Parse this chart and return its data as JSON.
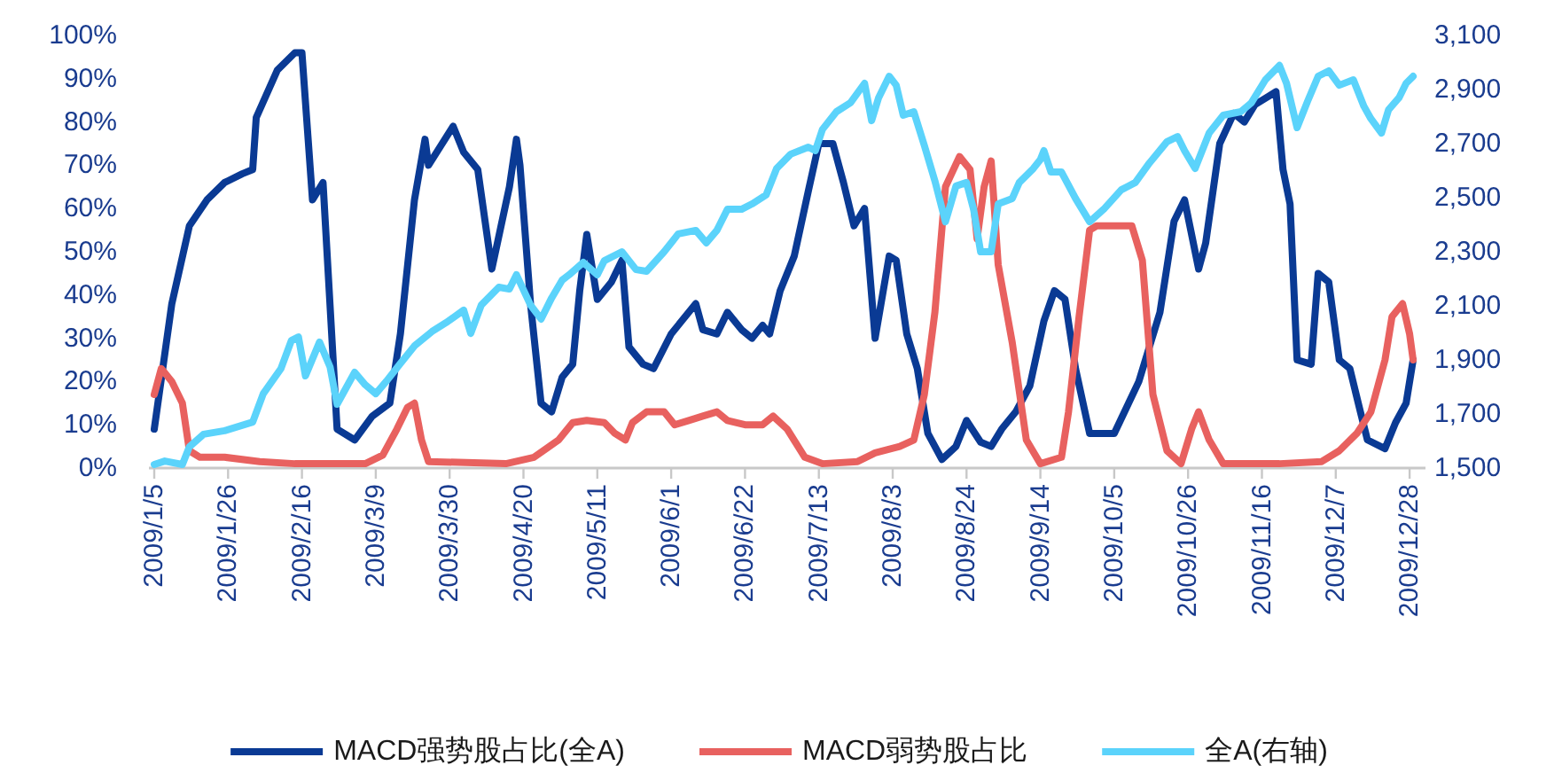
{
  "chart_data": {
    "type": "line",
    "legend": "bottom",
    "grid": false,
    "marker": "none",
    "line_style": "solid",
    "xlim": [
      "2009-01-05",
      "2009-12-31"
    ],
    "xticks": [
      {
        "value": "2009-01-05",
        "label": "2009/1/5"
      },
      {
        "value": "2009-01-26",
        "label": "2009/1/26"
      },
      {
        "value": "2009-02-16",
        "label": "2009/2/16"
      },
      {
        "value": "2009-03-09",
        "label": "2009/3/9"
      },
      {
        "value": "2009-03-30",
        "label": "2009/3/30"
      },
      {
        "value": "2009-04-20",
        "label": "2009/4/20"
      },
      {
        "value": "2009-05-11",
        "label": "2009/5/11"
      },
      {
        "value": "2009-06-01",
        "label": "2009/6/1"
      },
      {
        "value": "2009-06-22",
        "label": "2009/6/22"
      },
      {
        "value": "2009-07-13",
        "label": "2009/7/13"
      },
      {
        "value": "2009-08-03",
        "label": "2009/8/3"
      },
      {
        "value": "2009-08-24",
        "label": "2009/8/24"
      },
      {
        "value": "2009-09-14",
        "label": "2009/9/14"
      },
      {
        "value": "2009-10-05",
        "label": "2009/10/5"
      },
      {
        "value": "2009-10-26",
        "label": "2009/10/26"
      },
      {
        "value": "2009-11-16",
        "label": "2009/11/16"
      },
      {
        "value": "2009-12-07",
        "label": "2009/12/7"
      },
      {
        "value": "2009-12-28",
        "label": "2009/12/28"
      }
    ],
    "ylim": [
      0,
      100
    ],
    "yticks": [
      {
        "value": 0,
        "label": "0%"
      },
      {
        "value": 10,
        "label": "10%"
      },
      {
        "value": 20,
        "label": "20%"
      },
      {
        "value": 30,
        "label": "30%"
      },
      {
        "value": 40,
        "label": "40%"
      },
      {
        "value": 50,
        "label": "50%"
      },
      {
        "value": 60,
        "label": "60%"
      },
      {
        "value": 70,
        "label": "70%"
      },
      {
        "value": 80,
        "label": "80%"
      },
      {
        "value": 90,
        "label": "90%"
      },
      {
        "value": 100,
        "label": "100%"
      }
    ],
    "y2lim": [
      1500,
      3100
    ],
    "y2ticks": [
      {
        "value": 1500,
        "label": "1,500"
      },
      {
        "value": 1700,
        "label": "1,700"
      },
      {
        "value": 1900,
        "label": "1,900"
      },
      {
        "value": 2100,
        "label": "2,100"
      },
      {
        "value": 2300,
        "label": "2,300"
      },
      {
        "value": 2500,
        "label": "2,500"
      },
      {
        "value": 2700,
        "label": "2,700"
      },
      {
        "value": 2900,
        "label": "2,900"
      },
      {
        "value": 3100,
        "label": "3,100"
      }
    ],
    "series": [
      {
        "name": "MACD强势股占比(全A)",
        "color": "#0a3a94",
        "x": [
          "2009-01-05",
          "2009-01-10",
          "2009-01-15",
          "2009-01-20",
          "2009-01-25",
          "2009-01-30",
          "2009-02-02",
          "2009-02-03",
          "2009-02-09",
          "2009-02-14",
          "2009-02-16",
          "2009-02-19",
          "2009-02-22",
          "2009-02-26",
          "2009-03-03",
          "2009-03-08",
          "2009-03-13",
          "2009-03-16",
          "2009-03-20",
          "2009-03-23",
          "2009-03-24",
          "2009-03-31",
          "2009-04-03",
          "2009-04-07",
          "2009-04-11",
          "2009-04-16",
          "2009-04-18",
          "2009-04-19",
          "2009-04-22",
          "2009-04-25",
          "2009-04-28",
          "2009-05-01",
          "2009-05-04",
          "2009-05-06",
          "2009-05-08",
          "2009-05-11",
          "2009-05-15",
          "2009-05-18",
          "2009-05-20",
          "2009-05-24",
          "2009-05-27",
          "2009-06-01",
          "2009-06-04",
          "2009-06-08",
          "2009-06-10",
          "2009-06-14",
          "2009-06-17",
          "2009-06-21",
          "2009-06-24",
          "2009-06-27",
          "2009-06-29",
          "2009-07-02",
          "2009-07-06",
          "2009-07-10",
          "2009-07-13",
          "2009-07-17",
          "2009-07-20",
          "2009-07-23",
          "2009-07-26",
          "2009-07-29",
          "2009-08-02",
          "2009-08-04",
          "2009-08-07",
          "2009-08-10",
          "2009-08-13",
          "2009-08-17",
          "2009-08-21",
          "2009-08-24",
          "2009-08-28",
          "2009-08-31",
          "2009-09-03",
          "2009-09-07",
          "2009-09-11",
          "2009-09-15",
          "2009-09-18",
          "2009-09-21",
          "2009-09-24",
          "2009-09-28",
          "2009-10-05",
          "2009-10-12",
          "2009-10-18",
          "2009-10-22",
          "2009-10-25",
          "2009-10-29",
          "2009-10-31",
          "2009-11-04",
          "2009-11-08",
          "2009-11-11",
          "2009-11-14",
          "2009-11-18",
          "2009-11-20",
          "2009-11-22",
          "2009-11-24",
          "2009-11-26",
          "2009-11-30",
          "2009-12-02",
          "2009-12-05",
          "2009-12-08",
          "2009-12-11",
          "2009-12-14",
          "2009-12-16",
          "2009-12-21",
          "2009-12-24",
          "2009-12-27",
          "2009-12-29"
        ],
        "values": [
          9,
          38,
          56,
          62,
          66,
          68,
          69,
          81,
          92,
          96,
          96,
          62,
          66,
          9,
          6.5,
          12,
          15,
          31,
          62,
          76,
          70,
          79,
          73,
          69,
          46,
          65,
          76,
          70,
          38,
          15,
          13,
          21,
          24,
          41,
          54,
          39,
          43,
          48,
          28,
          24,
          23,
          31,
          34,
          38,
          32,
          31,
          36,
          32,
          30,
          33,
          31,
          41,
          49,
          64,
          75,
          75,
          66,
          56,
          60,
          30,
          49,
          48,
          31,
          23,
          8,
          2,
          5,
          11,
          6,
          5,
          9,
          13,
          19,
          34,
          41,
          39,
          23,
          8,
          8,
          20,
          36,
          57,
          62,
          46,
          52,
          75,
          82,
          80,
          84,
          86,
          87,
          69,
          61,
          25,
          24,
          45,
          43,
          25,
          23,
          13,
          6.5,
          4.5,
          10.5,
          15,
          25
        ]
      },
      {
        "name": "MACD弱势股占比",
        "color": "#e8615f",
        "x": [
          "2009-01-05",
          "2009-01-07",
          "2009-01-10",
          "2009-01-13",
          "2009-01-15",
          "2009-01-18",
          "2009-01-25",
          "2009-02-04",
          "2009-02-14",
          "2009-02-24",
          "2009-03-06",
          "2009-03-11",
          "2009-03-15",
          "2009-03-18",
          "2009-03-20",
          "2009-03-22",
          "2009-03-24",
          "2009-04-15",
          "2009-04-23",
          "2009-04-30",
          "2009-05-04",
          "2009-05-08",
          "2009-05-13",
          "2009-05-16",
          "2009-05-19",
          "2009-05-21",
          "2009-05-25",
          "2009-05-30",
          "2009-06-02",
          "2009-06-06",
          "2009-06-10",
          "2009-06-14",
          "2009-06-17",
          "2009-06-22",
          "2009-06-27",
          "2009-06-30",
          "2009-07-04",
          "2009-07-09",
          "2009-07-14",
          "2009-07-24",
          "2009-07-29",
          "2009-08-05",
          "2009-08-09",
          "2009-08-12",
          "2009-08-15",
          "2009-08-18",
          "2009-08-22",
          "2009-08-25",
          "2009-08-27",
          "2009-08-29",
          "2009-08-31",
          "2009-09-02",
          "2009-09-06",
          "2009-09-10",
          "2009-09-14",
          "2009-09-20",
          "2009-09-22",
          "2009-09-25",
          "2009-09-28",
          "2009-09-30",
          "2009-10-10",
          "2009-10-13",
          "2009-10-16",
          "2009-10-20",
          "2009-10-24",
          "2009-10-27",
          "2009-10-29",
          "2009-11-01",
          "2009-11-05",
          "2009-11-21",
          "2009-12-03",
          "2009-12-08",
          "2009-12-13",
          "2009-12-17",
          "2009-12-21",
          "2009-12-23",
          "2009-12-26",
          "2009-12-28",
          "2009-12-29"
        ],
        "values": [
          17,
          23,
          20,
          15,
          4,
          2.5,
          2.5,
          1.5,
          1,
          1,
          1,
          3,
          9,
          14,
          15,
          6.5,
          1.5,
          1,
          2.5,
          6.5,
          10.5,
          11,
          10.5,
          8,
          6.5,
          10.5,
          13,
          13,
          10,
          11,
          12,
          13,
          11,
          10,
          10,
          12,
          9,
          2.5,
          1,
          1.5,
          3.5,
          5,
          6.5,
          17,
          36,
          65,
          72,
          69,
          53,
          65,
          71,
          47,
          29,
          6.5,
          1,
          2.5,
          13,
          35,
          55,
          56,
          56,
          48,
          17,
          4,
          1,
          9,
          13,
          6.5,
          1,
          1,
          1.5,
          4,
          8,
          13,
          25,
          35,
          38,
          31,
          25
        ]
      },
      {
        "name": "全A(右轴)",
        "color": "#5bd3fb",
        "axis": "y2",
        "x": [
          "2009-01-05",
          "2009-01-08",
          "2009-01-13",
          "2009-01-15",
          "2009-01-19",
          "2009-01-25",
          "2009-02-02",
          "2009-02-05",
          "2009-02-10",
          "2009-02-13",
          "2009-02-15",
          "2009-02-17",
          "2009-02-21",
          "2009-02-24",
          "2009-02-26",
          "2009-03-03",
          "2009-03-06",
          "2009-03-09",
          "2009-03-12",
          "2009-03-16",
          "2009-03-20",
          "2009-03-25",
          "2009-03-29",
          "2009-04-03",
          "2009-04-05",
          "2009-04-08",
          "2009-04-13",
          "2009-04-16",
          "2009-04-18",
          "2009-04-22",
          "2009-04-25",
          "2009-04-28",
          "2009-05-01",
          "2009-05-03",
          "2009-05-07",
          "2009-05-11",
          "2009-05-13",
          "2009-05-18",
          "2009-05-22",
          "2009-05-25",
          "2009-05-30",
          "2009-06-03",
          "2009-06-08",
          "2009-06-11",
          "2009-06-14",
          "2009-06-17",
          "2009-06-21",
          "2009-06-24",
          "2009-06-28",
          "2009-07-01",
          "2009-07-05",
          "2009-07-10",
          "2009-07-12",
          "2009-07-14",
          "2009-07-18",
          "2009-07-22",
          "2009-07-26",
          "2009-07-28",
          "2009-07-30",
          "2009-08-02",
          "2009-08-04",
          "2009-08-06",
          "2009-08-09",
          "2009-08-12",
          "2009-08-15",
          "2009-08-18",
          "2009-08-21",
          "2009-08-24",
          "2009-08-26",
          "2009-08-28",
          "2009-08-31",
          "2009-09-02",
          "2009-09-06",
          "2009-09-08",
          "2009-09-12",
          "2009-09-14",
          "2009-09-15",
          "2009-09-17",
          "2009-09-20",
          "2009-09-24",
          "2009-09-28",
          "2009-10-02",
          "2009-10-07",
          "2009-10-11",
          "2009-10-15",
          "2009-10-20",
          "2009-10-23",
          "2009-10-25",
          "2009-10-28",
          "2009-11-01",
          "2009-11-05",
          "2009-11-10",
          "2009-11-13",
          "2009-11-17",
          "2009-11-21",
          "2009-11-23",
          "2009-11-26",
          "2009-11-29",
          "2009-12-02",
          "2009-12-05",
          "2009-12-08",
          "2009-12-12",
          "2009-12-15",
          "2009-12-17",
          "2009-12-20",
          "2009-12-22",
          "2009-12-25",
          "2009-12-27",
          "2009-12-29"
        ],
        "values": [
          1513,
          1526,
          1513,
          1579,
          1625,
          1638,
          1670,
          1775,
          1867,
          1972,
          1985,
          1841,
          1966,
          1874,
          1736,
          1854,
          1808,
          1775,
          1821,
          1887,
          1952,
          2005,
          2038,
          2084,
          1998,
          2103,
          2169,
          2162,
          2215,
          2103,
          2051,
          2129,
          2195,
          2215,
          2261,
          2215,
          2267,
          2300,
          2234,
          2228,
          2300,
          2366,
          2379,
          2333,
          2379,
          2457,
          2457,
          2477,
          2510,
          2608,
          2661,
          2687,
          2674,
          2752,
          2818,
          2851,
          2923,
          2785,
          2870,
          2949,
          2916,
          2805,
          2818,
          2693,
          2562,
          2411,
          2543,
          2556,
          2457,
          2300,
          2300,
          2477,
          2497,
          2556,
          2608,
          2641,
          2674,
          2595,
          2595,
          2497,
          2411,
          2457,
          2529,
          2556,
          2628,
          2707,
          2726,
          2674,
          2608,
          2739,
          2805,
          2818,
          2851,
          2936,
          2989,
          2923,
          2759,
          2857,
          2949,
          2969,
          2916,
          2936,
          2838,
          2792,
          2739,
          2825,
          2870,
          2923,
          2949
        ]
      }
    ]
  }
}
